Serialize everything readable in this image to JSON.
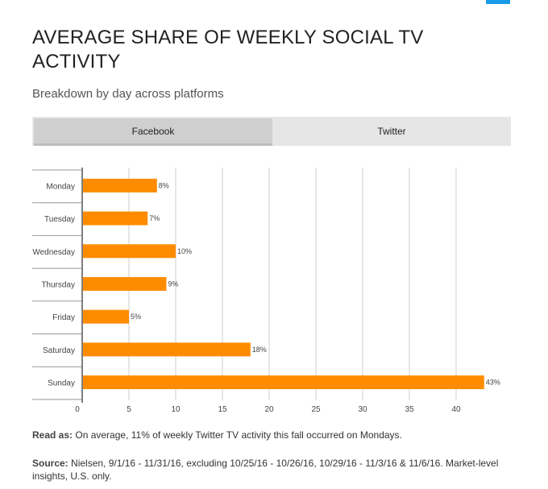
{
  "header": {
    "title": "AVERAGE SHARE OF WEEKLY SOCIAL TV ACTIVITY",
    "subtitle": "Breakdown by day across platforms"
  },
  "tabs": [
    {
      "label": "Facebook",
      "active": true
    },
    {
      "label": "Twitter",
      "active": false
    }
  ],
  "chart_data": {
    "type": "bar",
    "orientation": "horizontal",
    "categories": [
      "Monday",
      "Tuesday",
      "Wednesday",
      "Thursday",
      "Friday",
      "Saturday",
      "Sunday"
    ],
    "values": [
      8,
      7,
      10,
      9,
      5,
      18,
      43
    ],
    "value_labels": [
      "8%",
      "7%",
      "10%",
      "9%",
      "5%",
      "18%",
      "43%"
    ],
    "xlim": [
      0,
      45
    ],
    "xticks": [
      0,
      5,
      10,
      15,
      20,
      25,
      30,
      35,
      40
    ],
    "grid": true,
    "bar_color": "#ff8c00"
  },
  "footer": {
    "read_as_label": "Read as:",
    "read_as_text": " On average, 11% of weekly Twitter TV activity this fall occurred on Mondays.",
    "source_label": "Source:",
    "source_text": " Nielsen, 9/1/16 - 11/31/16, excluding 10/25/16 - 10/26/16, 10/29/16 - 11/3/16 & 11/6/16. Market-level insights, U.S. only."
  },
  "colors": {
    "accent_tab": "#1a9be8",
    "bar": "#ff8c00"
  }
}
